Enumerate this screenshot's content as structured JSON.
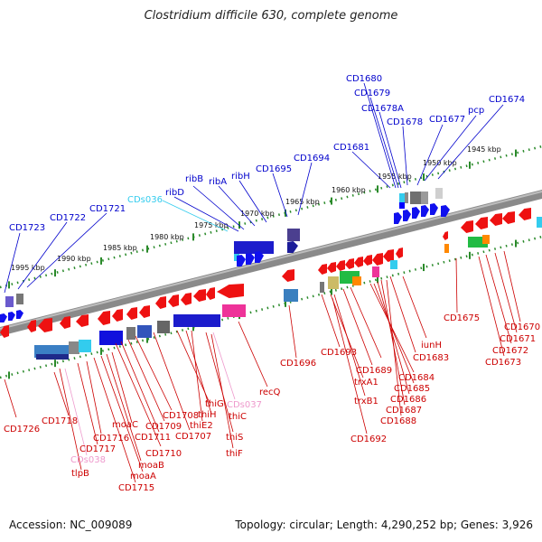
{
  "title": "Clostridium difficile 630, complete genome",
  "footer": {
    "accession": "Accession: NC_009089",
    "summary": "Topology: circular; Length: 4,290,252 bp; Genes: 3,926"
  },
  "colors": {
    "forward_label": "#0000cc",
    "reverse_label": "#cc0000",
    "cds_forward": "#33ccee",
    "cds_reverse": "#ee99cc",
    "backbone": "#8a8a8a",
    "ticks": "#2a8a2a"
  },
  "ticks": [
    "1945 kbp",
    "1950 kbp",
    "1955 kbp",
    "1960 kbp",
    "1965 kbp",
    "1970 kbp",
    "1975 kbp",
    "1980 kbp",
    "1985 kbp",
    "1990 kbp",
    "1995 kbp"
  ],
  "forward_labels": [
    "CD1680",
    "CD1679",
    "CD1678A",
    "CD1678",
    "CD1677",
    "pcp",
    "CD1674",
    "CD1681",
    "CD1694",
    "CD1695",
    "ribH",
    "ribA",
    "ribB",
    "ribD",
    "CDs036",
    "CD1723",
    "CD1722",
    "CD1721"
  ],
  "reverse_labels": [
    "recQ",
    "thiC",
    "CDs037",
    "thiG",
    "thiH",
    "thiE2",
    "thiS",
    "thiF",
    "CD1696",
    "CD1693",
    "trxA1",
    "trxB1",
    "CD1692",
    "CD1689",
    "CD1684",
    "CD1685",
    "CD1686",
    "CD1687",
    "CD1688",
    "CD1683",
    "iunH",
    "CD1675",
    "CD1670",
    "CD1671",
    "CD1672",
    "CD1673",
    "CD1708",
    "CD1709",
    "CD1711",
    "CD1710",
    "CD1707",
    "moaC",
    "moaB",
    "moaA",
    "CD1715",
    "CD1716",
    "CD1717",
    "CDs038",
    "tlpB",
    "CD1718",
    "CD1726"
  ]
}
